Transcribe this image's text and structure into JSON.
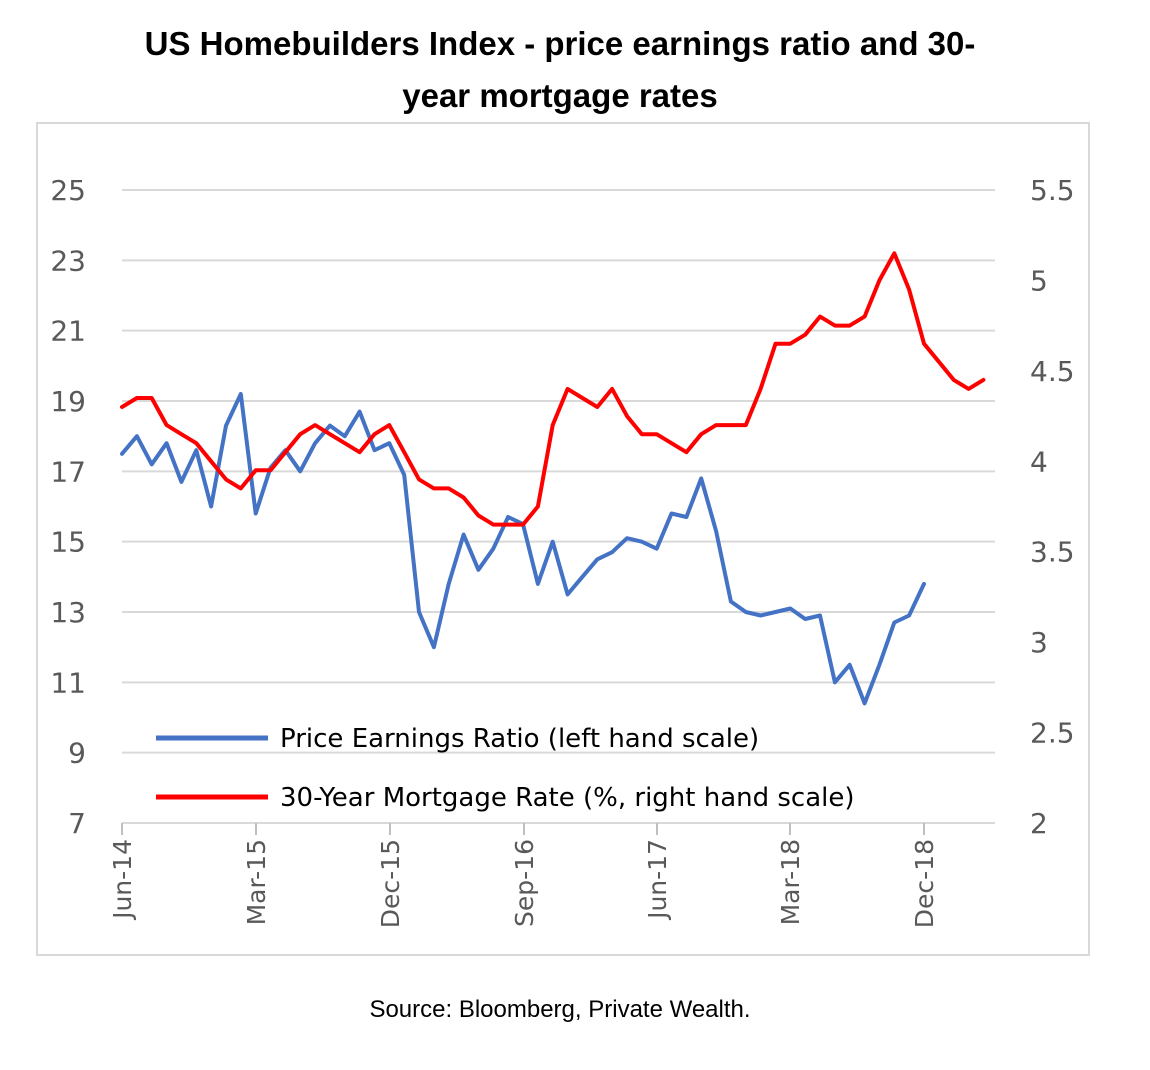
{
  "title_line1": "US Homebuilders Index - price earnings ratio and 30-",
  "title_line2": "year mortgage rates",
  "source": "Source: Bloomberg, Private Wealth.",
  "chart_data": {
    "type": "line",
    "title": "US Homebuilders Index - price earnings ratio and 30-year mortgage rates",
    "x_ticks": [
      "Jun-14",
      "Mar-15",
      "Dec-15",
      "Sep-16",
      "Jun-17",
      "Mar-18",
      "Dec-18"
    ],
    "x_range": [
      "2014-06",
      "2019-05"
    ],
    "y_left": {
      "range": [
        7,
        25
      ],
      "ticks": [
        "7",
        "9",
        "11",
        "13",
        "15",
        "17",
        "19",
        "21",
        "23",
        "25"
      ]
    },
    "y_right": {
      "range": [
        2,
        5.5
      ],
      "ticks": [
        "2",
        "2.5",
        "3",
        "3.5",
        "4",
        "4.5",
        "5",
        "5.5"
      ]
    },
    "grid": "horizontal",
    "legend": "bottom-left",
    "series": [
      {
        "name": "Price Earnings Ratio (left hand scale)",
        "axis": "left",
        "color": "#4472c4",
        "points": [
          [
            "2014-06",
            17.5
          ],
          [
            "2014-07",
            18.0
          ],
          [
            "2014-08",
            17.2
          ],
          [
            "2014-09",
            17.8
          ],
          [
            "2014-10",
            16.7
          ],
          [
            "2014-11",
            17.6
          ],
          [
            "2014-12",
            16.0
          ],
          [
            "2015-01",
            18.3
          ],
          [
            "2015-02",
            19.2
          ],
          [
            "2015-03",
            15.8
          ],
          [
            "2015-04",
            17.1
          ],
          [
            "2015-05",
            17.6
          ],
          [
            "2015-06",
            17.0
          ],
          [
            "2015-07",
            17.8
          ],
          [
            "2015-08",
            18.3
          ],
          [
            "2015-09",
            18.0
          ],
          [
            "2015-10",
            18.7
          ],
          [
            "2015-11",
            17.6
          ],
          [
            "2015-12",
            17.8
          ],
          [
            "2016-01",
            16.9
          ],
          [
            "2016-02",
            13.0
          ],
          [
            "2016-03",
            12.0
          ],
          [
            "2016-04",
            13.8
          ],
          [
            "2016-05",
            15.2
          ],
          [
            "2016-06",
            14.2
          ],
          [
            "2016-07",
            14.8
          ],
          [
            "2016-08",
            15.7
          ],
          [
            "2016-09",
            15.5
          ],
          [
            "2016-10",
            13.8
          ],
          [
            "2016-11",
            15.0
          ],
          [
            "2016-12",
            13.5
          ],
          [
            "2017-01",
            14.0
          ],
          [
            "2017-02",
            14.5
          ],
          [
            "2017-03",
            14.7
          ],
          [
            "2017-04",
            15.1
          ],
          [
            "2017-05",
            15.0
          ],
          [
            "2017-06",
            14.8
          ],
          [
            "2017-07",
            15.8
          ],
          [
            "2017-08",
            15.7
          ],
          [
            "2017-09",
            16.8
          ],
          [
            "2017-10",
            15.3
          ],
          [
            "2017-11",
            13.3
          ],
          [
            "2017-12",
            13.0
          ],
          [
            "2018-01",
            12.9
          ],
          [
            "2018-02",
            13.0
          ],
          [
            "2018-03",
            13.1
          ],
          [
            "2018-04",
            12.8
          ],
          [
            "2018-05",
            12.9
          ],
          [
            "2018-06",
            11.0
          ],
          [
            "2018-07",
            11.5
          ],
          [
            "2018-08",
            10.4
          ],
          [
            "2018-09",
            11.5
          ],
          [
            "2018-10",
            12.7
          ],
          [
            "2018-11",
            12.9
          ],
          [
            "2018-12",
            13.8
          ]
        ]
      },
      {
        "name": "30-Year Mortgage Rate (%, right hand scale)",
        "axis": "right",
        "color": "#ff0000",
        "points": [
          [
            "2014-06",
            4.3
          ],
          [
            "2014-07",
            4.35
          ],
          [
            "2014-08",
            4.35
          ],
          [
            "2014-09",
            4.2
          ],
          [
            "2014-10",
            4.15
          ],
          [
            "2014-11",
            4.1
          ],
          [
            "2014-12",
            4.0
          ],
          [
            "2015-01",
            3.9
          ],
          [
            "2015-02",
            3.85
          ],
          [
            "2015-03",
            3.95
          ],
          [
            "2015-04",
            3.95
          ],
          [
            "2015-05",
            4.05
          ],
          [
            "2015-06",
            4.15
          ],
          [
            "2015-07",
            4.2
          ],
          [
            "2015-08",
            4.15
          ],
          [
            "2015-09",
            4.1
          ],
          [
            "2015-10",
            4.05
          ],
          [
            "2015-11",
            4.15
          ],
          [
            "2015-12",
            4.2
          ],
          [
            "2016-01",
            4.05
          ],
          [
            "2016-02",
            3.9
          ],
          [
            "2016-03",
            3.85
          ],
          [
            "2016-04",
            3.85
          ],
          [
            "2016-05",
            3.8
          ],
          [
            "2016-06",
            3.7
          ],
          [
            "2016-07",
            3.65
          ],
          [
            "2016-08",
            3.65
          ],
          [
            "2016-09",
            3.65
          ],
          [
            "2016-10",
            3.75
          ],
          [
            "2016-11",
            4.2
          ],
          [
            "2016-12",
            4.4
          ],
          [
            "2017-01",
            4.35
          ],
          [
            "2017-02",
            4.3
          ],
          [
            "2017-03",
            4.4
          ],
          [
            "2017-04",
            4.25
          ],
          [
            "2017-05",
            4.15
          ],
          [
            "2017-06",
            4.15
          ],
          [
            "2017-07",
            4.1
          ],
          [
            "2017-08",
            4.05
          ],
          [
            "2017-09",
            4.15
          ],
          [
            "2017-10",
            4.2
          ],
          [
            "2017-11",
            4.2
          ],
          [
            "2017-12",
            4.2
          ],
          [
            "2018-01",
            4.4
          ],
          [
            "2018-02",
            4.65
          ],
          [
            "2018-03",
            4.65
          ],
          [
            "2018-04",
            4.7
          ],
          [
            "2018-05",
            4.8
          ],
          [
            "2018-06",
            4.75
          ],
          [
            "2018-07",
            4.75
          ],
          [
            "2018-08",
            4.8
          ],
          [
            "2018-09",
            5.0
          ],
          [
            "2018-10",
            5.15
          ],
          [
            "2018-11",
            4.95
          ],
          [
            "2018-12",
            4.65
          ],
          [
            "2019-01",
            4.55
          ],
          [
            "2019-02",
            4.45
          ],
          [
            "2019-03",
            4.4
          ],
          [
            "2019-04",
            4.45
          ]
        ]
      }
    ]
  }
}
